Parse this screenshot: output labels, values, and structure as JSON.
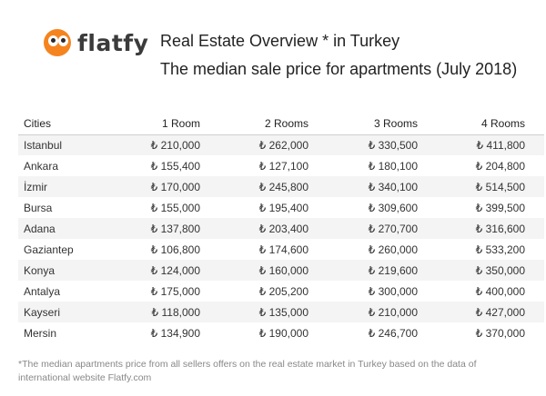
{
  "logo": {
    "text": "flatfy",
    "accent_color": "#f5841f"
  },
  "header": {
    "title": "Real Estate Overview * in Turkey",
    "subtitle": "The median sale price for apartments (July 2018)"
  },
  "table": {
    "headers": [
      "Cities",
      "1 Room",
      "2 Rooms",
      "3 Rooms",
      "4 Rooms"
    ],
    "rows": [
      [
        "Istanbul",
        "₺ 210,000",
        "₺ 262,000",
        "₺ 330,500",
        "₺ 411,800"
      ],
      [
        "Ankara",
        "₺ 155,400",
        "₺ 127,100",
        "₺ 180,100",
        "₺ 204,800"
      ],
      [
        "İzmir",
        "₺ 170,000",
        "₺ 245,800",
        "₺ 340,100",
        "₺ 514,500"
      ],
      [
        "Bursa",
        "₺ 155,000",
        "₺ 195,400",
        "₺ 309,600",
        "₺ 399,500"
      ],
      [
        "Adana",
        "₺ 137,800",
        "₺ 203,400",
        "₺ 270,700",
        "₺ 316,600"
      ],
      [
        "Gaziantep",
        "₺ 106,800",
        "₺ 174,600",
        "₺ 260,000",
        "₺ 533,200"
      ],
      [
        "Konya",
        "₺ 124,000",
        "₺ 160,000",
        "₺ 219,600",
        "₺ 350,000"
      ],
      [
        "Antalya",
        "₺ 175,000",
        "₺ 205,200",
        "₺ 300,000",
        "₺ 400,000"
      ],
      [
        "Kayseri",
        "₺ 118,000",
        "₺ 135,000",
        "₺ 210,000",
        "₺ 427,000"
      ],
      [
        "Mersin",
        "₺ 134,900",
        "₺ 190,000",
        "₺ 246,700",
        "₺ 370,000"
      ]
    ]
  },
  "footnote": "*The median apartments price from all sellers offers on the real estate market in Turkey based on the data of international website Flatfy.com"
}
